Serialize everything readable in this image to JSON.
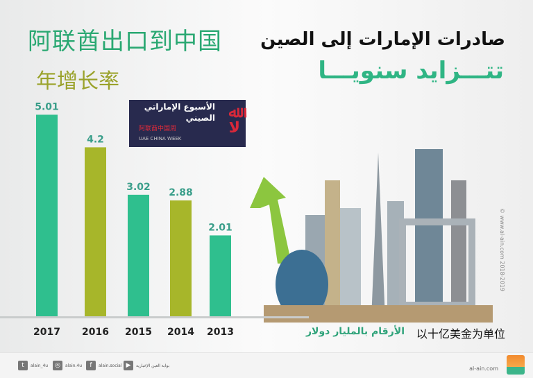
{
  "title_zh": "阿联酋出口到中国",
  "subtitle_zh": "年增长率",
  "title_ar": "صادرات الإمارات إلى الصين",
  "subtitle_ar": "تتـــزايد سنويـــا",
  "logo": {
    "ar1": "الأسبوع الإماراتي",
    "ar2": "الصيني",
    "zh": "阿联酋中国周",
    "en": "UAE CHINA WEEK"
  },
  "unit_ar": "الأرقام بالمليار دولار",
  "unit_zh": "以十亿美金为单位",
  "watermark": "© www.al-ain.com 2018-2019",
  "footer": {
    "twitter": "alain_4u",
    "instagram": "alain.4u",
    "facebook": "alain.social",
    "youtube": "بوابة العين الإخبارية",
    "site": "al-ain.com",
    "brand": "العين الإخبارية"
  },
  "colors": {
    "green": "#2fbf8e",
    "olive": "#a7b62a",
    "label": "#3a9e8a"
  },
  "chart_data": {
    "type": "bar",
    "categories": [
      "2017",
      "2016",
      "2015",
      "2014",
      "2013"
    ],
    "values": [
      5.01,
      4.2,
      3.02,
      2.88,
      2.01
    ],
    "bar_colors": [
      "green",
      "olive",
      "green",
      "olive",
      "green"
    ],
    "title": "阿联酋出口到中国",
    "xlabel": "",
    "ylabel": "",
    "grid": false,
    "legend": "none"
  }
}
